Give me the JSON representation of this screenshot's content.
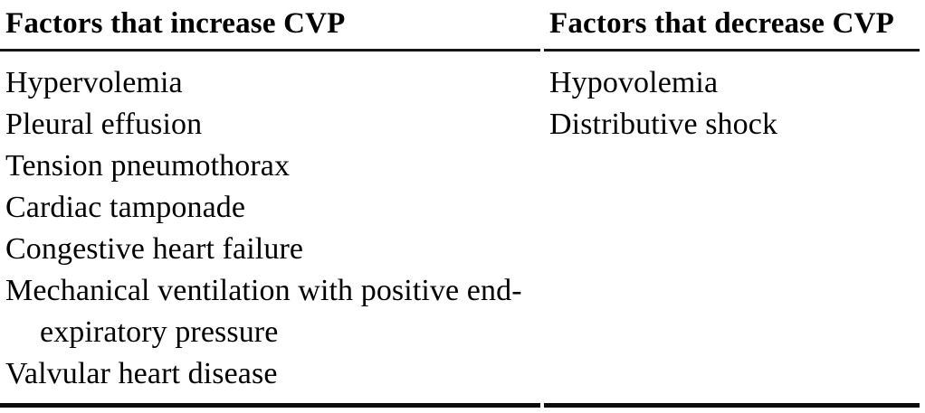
{
  "table": {
    "columns": [
      {
        "header": "Factors that increase CVP",
        "items": [
          "Hypervolemia",
          "Pleural effusion",
          "Tension pneumothorax",
          "Cardiac tamponade",
          "Congestive heart failure",
          "Mechanical ventilation with positive end-expiratory pressure",
          "Valvular heart disease"
        ]
      },
      {
        "header": "Factors that decrease CVP",
        "items": [
          "Hypovolemia",
          "Distributive shock"
        ]
      }
    ]
  },
  "colors": {
    "text": "#000000",
    "background": "#ffffff",
    "header_rule": "#151515",
    "bottom_rule": "#0a0a0a"
  }
}
